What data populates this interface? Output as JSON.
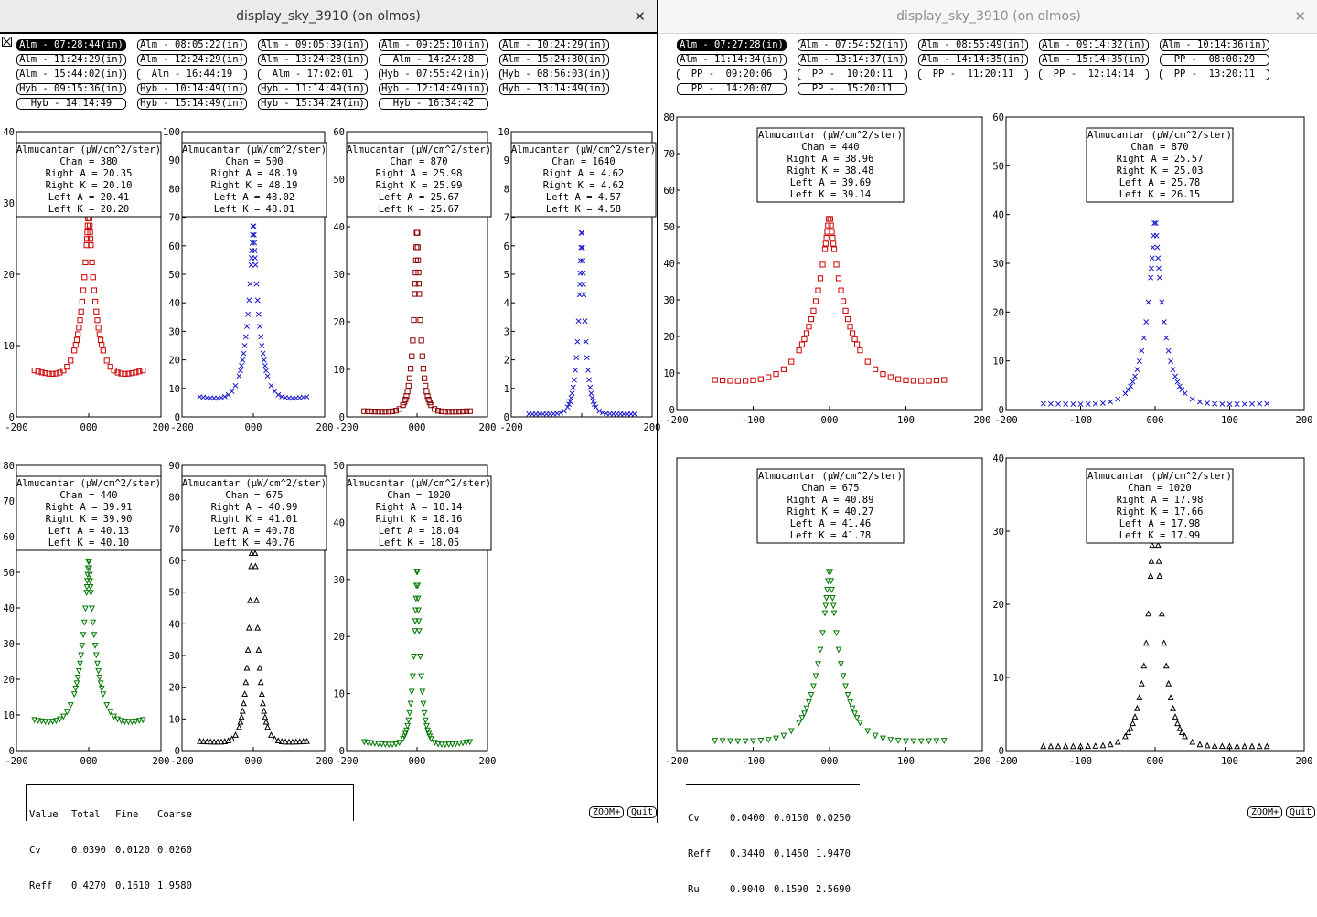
{
  "left_window": {
    "title": "display_sky_3910 (on olmos)",
    "close_icon": "close-icon",
    "time_buttons": [
      "Alm - 07:28:44(in)",
      "Alm - 08:05:22(in)",
      "Alm - 09:05:39(in)",
      "Alm - 09:25:10(in)",
      "Alm - 10:24:29(in)",
      "Alm - 11:24:29(in)",
      "Alm - 12:24:29(in)",
      "Alm - 13:24:28(in)",
      "Alm - 14:24:28",
      "Alm - 15:24:30(in)",
      "Alm - 15:44:02(in)",
      "Alm - 16:44:19",
      "Alm - 17:02:01",
      "Hyb - 07:55:42(in)",
      "Hyb - 08:56:03(in)",
      "Hyb - 09:15:36(in)",
      "Hyb - 10:14:49(in)",
      "Hyb - 11:14:49(in)",
      "Hyb - 12:14:49(in)",
      "Hyb - 13:14:49(in)",
      "Hyb - 14:14:49",
      "Hyb - 15:14:49(in)",
      "Hyb - 15:34:24(in)",
      "Hyb - 16:34:42"
    ],
    "active_button": 0,
    "stats": {
      "header": [
        "Value",
        "Total",
        "Fine",
        "Coarse"
      ],
      "rows": [
        [
          "Cv",
          "0.0390",
          "0.0120",
          "0.0260"
        ],
        [
          "Reff",
          "0.4270",
          "0.1610",
          "1.9580"
        ]
      ]
    },
    "zoom_label": "ZOOM+",
    "quit_label": "Quit"
  },
  "right_window": {
    "title": "display_sky_3910 (on olmos)",
    "close_icon": "close-icon",
    "time_buttons": [
      "Alm - 07:27:28(in)",
      "Alm - 07:54:52(in)",
      "Alm - 08:55:49(in)",
      "Alm - 09:14:32(in)",
      "Alm - 10:14:36(in)",
      "Alm - 11:14:34(in)",
      "Alm - 13:14:37(in)",
      "Alm - 14:14:35(in)",
      "Alm - 15:14:35(in)",
      "PP -  08:00:29",
      "PP -  09:20:06",
      "PP -  10:20:11",
      "PP -  11:20:11",
      "PP -  12:14:14",
      "PP -  13:20:11",
      "PP -  14:20:07",
      "PP -  15:20:11"
    ],
    "active_button": 0,
    "stats": {
      "header": [
        "",
        "",
        "",
        ""
      ],
      "rows": [
        [
          "Cv",
          "0.0400",
          "0.0150",
          "0.0250"
        ],
        [
          "Reff",
          "0.3440",
          "0.1450",
          "1.9470"
        ],
        [
          "Ru",
          "0.9040",
          "0.1590",
          "2.5690"
        ]
      ]
    },
    "zoom_label": "ZOOM+",
    "quit_label": "Quit"
  },
  "colors": {
    "red": "#cc0000",
    "blue": "#1a1acc",
    "darkred": "#8b0000",
    "green": "#007700",
    "black": "#000000"
  },
  "chart_data": [
    {
      "type": "scatter",
      "panel": "left-1",
      "marker": "square",
      "color": "#cc0000",
      "legend": [
        "Almucantar (µW/cm^2/ster)",
        "Chan = 380",
        "Right A = 20.35",
        "Right K = 20.10",
        "Left A = 20.41",
        "Left K = 20.20"
      ],
      "xlim": [
        -200,
        200
      ],
      "ylim": [
        0,
        40
      ],
      "xticks": [
        "-200",
        "000",
        "200"
      ],
      "yticks": [
        "0",
        "10",
        "20",
        "30",
        "40"
      ],
      "peak": 30,
      "base": 5.2,
      "edge": 6.5,
      "width": 22,
      "xmax": 150
    },
    {
      "type": "scatter",
      "panel": "left-2",
      "marker": "x",
      "color": "#1a1acc",
      "legend": [
        "Almucantar (µW/cm^2/ster)",
        "Chan = 500",
        "Right A = 48.19",
        "Right K = 48.19",
        "Left A = 48.02",
        "Left K = 48.01"
      ],
      "xlim": [
        -200,
        200
      ],
      "ylim": [
        0,
        100
      ],
      "xticks": [
        "-200",
        "000",
        "200"
      ],
      "yticks": [
        "0",
        "10",
        "20",
        "30",
        "40",
        "50",
        "60",
        "70",
        "80",
        "90",
        "100"
      ],
      "peak": 70,
      "base": 5.5,
      "edge": 7,
      "width": 20,
      "xmax": 150
    },
    {
      "type": "scatter",
      "panel": "left-3",
      "marker": "square",
      "color": "#8b0000",
      "legend": [
        "Almucantar (µW/cm^2/ster)",
        "Chan = 870",
        "Right A = 25.98",
        "Right K = 25.99",
        "Left A = 25.67",
        "Left K = 25.67"
      ],
      "xlim": [
        -200,
        200
      ],
      "ylim": [
        0,
        60
      ],
      "xticks": [
        "-200",
        "000",
        "200"
      ],
      "yticks": [
        "0",
        "10",
        "20",
        "30",
        "40",
        "50",
        "60"
      ],
      "peak": 42,
      "base": 1,
      "edge": 1.2,
      "width": 12,
      "xmax": 150
    },
    {
      "type": "scatter",
      "panel": "left-4",
      "marker": "x",
      "color": "#1a1acc",
      "legend": [
        "Almucantar (µW/cm^2/ster)",
        "Chan = 1640",
        "Right A = 4.62",
        "Right K = 4.62",
        "Left A = 4.57",
        "Left K = 4.58"
      ],
      "xlim": [
        -200,
        200
      ],
      "ylim": [
        0,
        10
      ],
      "xticks": [
        "-200",
        "",
        "200"
      ],
      "yticks": [
        "0",
        "1",
        "2",
        "3",
        "4",
        "5",
        "6",
        "7",
        "8",
        "9",
        "10"
      ],
      "peak": 7,
      "base": 0.1,
      "edge": 0.1,
      "width": 12,
      "xmax": 150
    },
    {
      "type": "scatter",
      "panel": "left-5",
      "marker": "tri-down",
      "color": "#007700",
      "legend": [
        "Almucantar (µW/cm^2/ster)",
        "Chan = 440",
        "Right A = 39.91",
        "Right K = 39.90",
        "Left A = 40.13",
        "Left K = 40.10"
      ],
      "xlim": [
        -200,
        200
      ],
      "ylim": [
        0,
        80
      ],
      "xticks": [
        "-200",
        "000",
        "200"
      ],
      "yticks": [
        "0",
        "10",
        "20",
        "30",
        "40",
        "50",
        "60",
        "70",
        "80"
      ],
      "peak": 55,
      "base": 6.5,
      "edge": 8.5,
      "width": 24,
      "xmax": 150
    },
    {
      "type": "scatter",
      "panel": "left-6",
      "marker": "tri-up",
      "color": "#000000",
      "legend": [
        "Almucantar (µW/cm^2/ster)",
        "Chan = 675",
        "Right A = 40.99",
        "Right K = 41.01",
        "Left A = 40.78",
        "Left K = 40.76"
      ],
      "xlim": [
        -200,
        200
      ],
      "ylim": [
        0,
        90
      ],
      "xticks": [
        "-200",
        "000",
        "200"
      ],
      "yticks": [
        "0",
        "10",
        "20",
        "30",
        "40",
        "50",
        "60",
        "70",
        "80",
        "90"
      ],
      "peak": 88,
      "base": 2.5,
      "edge": 3,
      "width": 14,
      "xmax": 150
    },
    {
      "type": "scatter",
      "panel": "left-7",
      "marker": "tri-down",
      "color": "#007700",
      "legend": [
        "Almucantar (µW/cm^2/ster)",
        "Chan = 1020",
        "Right A = 18.14",
        "Right K = 18.16",
        "Left A = 18.04",
        "Left K = 18.05"
      ],
      "xlim": [
        -200,
        200
      ],
      "ylim": [
        0,
        50
      ],
      "xticks": [
        "-200",
        "000",
        "200"
      ],
      "yticks": [
        "0",
        "10",
        "20",
        "30",
        "40",
        "50"
      ],
      "peak": 34,
      "base": 0.8,
      "edge": 1.5,
      "width": 12,
      "xmax": 150
    },
    {
      "type": "scatter",
      "panel": "right-1",
      "marker": "square",
      "color": "#cc0000",
      "legend": [
        "Almucantar (µW/cm^2/ster)",
        "Chan = 440",
        "Right A = 38.96",
        "Right K = 38.48",
        "Left A = 39.69",
        "Left K = 39.14"
      ],
      "xlim": [
        -200,
        200
      ],
      "ylim": [
        0,
        80
      ],
      "xticks": [
        "-200",
        "-100",
        "000",
        "100",
        "200"
      ],
      "yticks": [
        "0",
        "10",
        "20",
        "30",
        "40",
        "50",
        "60",
        "70",
        "80"
      ],
      "peak": 54,
      "base": 6.5,
      "edge": 8,
      "width": 25,
      "xmax": 150
    },
    {
      "type": "scatter",
      "panel": "right-2",
      "marker": "x",
      "color": "#1a1acc",
      "legend": [
        "Almucantar (µW/cm^2/ster)",
        "Chan = 870",
        "Right A = 25.57",
        "Right K = 25.03",
        "Left A = 25.78",
        "Left K = 26.15"
      ],
      "xlim": [
        -200,
        200
      ],
      "ylim": [
        0,
        60
      ],
      "xticks": [
        "-200",
        "-100",
        "000",
        "100",
        "200"
      ],
      "yticks": [
        "0",
        "10",
        "20",
        "30",
        "40",
        "50",
        "60"
      ],
      "peak": 41,
      "base": 1,
      "edge": 1.2,
      "width": 14,
      "xmax": 150
    },
    {
      "type": "scatter",
      "panel": "right-3",
      "marker": "tri-down",
      "color": "#007700",
      "legend": [
        "Almucantar (µW/cm^2/ster)",
        "Chan = 675",
        "Right A = 40.89",
        "Right K = 40.27",
        "Left A = 41.46",
        "Left K = 41.78"
      ],
      "xlim": [
        -200,
        200
      ],
      "ylim": [
        0,
        90
      ],
      "xticks": [
        "-200",
        "-100",
        "000",
        "100",
        "200"
      ],
      "yticks": [],
      "peak": 58,
      "base": 2.5,
      "edge": 3,
      "width": 18,
      "xmax": 150
    },
    {
      "type": "scatter",
      "panel": "right-4",
      "marker": "tri-up",
      "color": "#000000",
      "legend": [
        "Almucantar (µW/cm^2/ster)",
        "Chan = 1020",
        "Right A = 17.98",
        "Right K = 17.66",
        "Left A = 17.98",
        "Left K = 17.99"
      ],
      "xlim": [
        -200,
        200
      ],
      "ylim": [
        0,
        40
      ],
      "xticks": [
        "-200",
        "-100",
        "000",
        "100",
        "200"
      ],
      "yticks": [
        "0",
        "10",
        "20",
        "30",
        "40"
      ],
      "peak": 39,
      "base": 0.6,
      "edge": 0.6,
      "width": 12,
      "xmax": 150
    }
  ]
}
